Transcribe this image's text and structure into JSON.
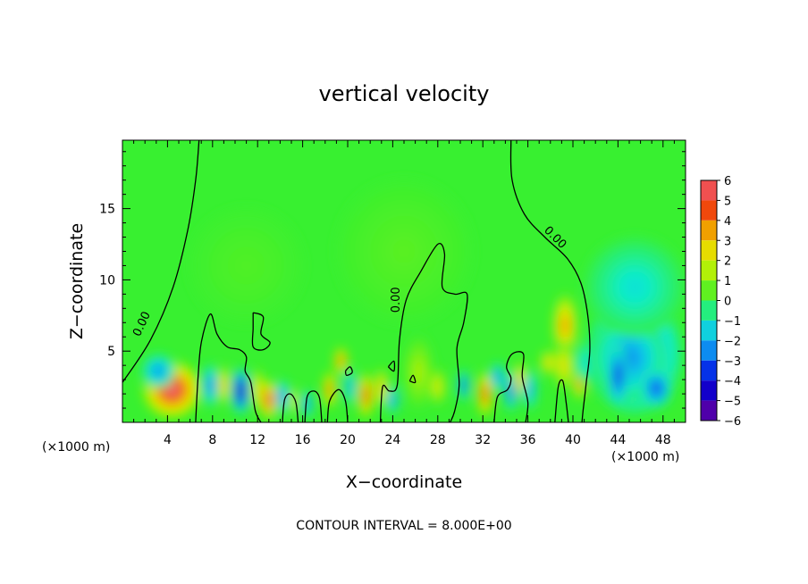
{
  "chart_data": {
    "type": "heatmap",
    "title": "vertical velocity",
    "xlabel": "X−coordinate",
    "ylabel": "Z−coordinate",
    "x_unit_left": "(×1000 m)",
    "x_unit_right": "(×1000 m)",
    "footer": "CONTOUR INTERVAL = 8.000E+00",
    "xlim": [
      0,
      50
    ],
    "ylim": [
      0,
      19.8
    ],
    "x_ticks": [
      4,
      8,
      12,
      16,
      20,
      24,
      28,
      32,
      36,
      40,
      44,
      48
    ],
    "y_ticks": [
      5,
      10,
      15
    ],
    "colorbar": {
      "levels": [
        6,
        5,
        4,
        3,
        2,
        1,
        0,
        -1,
        -2,
        -3,
        -4,
        -5,
        -6
      ],
      "labels": [
        "6",
        "5",
        "4",
        "3",
        "2",
        "1",
        "0",
        "−1",
        "−2",
        "−3",
        "−4",
        "−5",
        "−6"
      ]
    },
    "contour_labels": [
      {
        "text": "0.00",
        "x": 2.0,
        "y": 6.8
      },
      {
        "text": "0.00",
        "x": 24.6,
        "y": 8.6
      },
      {
        "text": "0.00",
        "x": 38.2,
        "y": 12.8
      }
    ],
    "features": [
      {
        "x": 4.4,
        "y": 2.3,
        "w": 2.6,
        "h": 2.0,
        "a": 6
      },
      {
        "x": 3.2,
        "y": 3.6,
        "w": 1.5,
        "h": 1.2,
        "a": -2.5
      },
      {
        "x": 7.8,
        "y": 2.6,
        "w": 0.7,
        "h": 1.5,
        "a": -3
      },
      {
        "x": 9.0,
        "y": 2.6,
        "w": 0.6,
        "h": 1.4,
        "a": 3.5
      },
      {
        "x": 10.5,
        "y": 2.2,
        "w": 0.8,
        "h": 1.6,
        "a": -5.5
      },
      {
        "x": 12.0,
        "y": 2.3,
        "w": 0.6,
        "h": 1.5,
        "a": 3
      },
      {
        "x": 13.0,
        "y": 1.6,
        "w": 0.8,
        "h": 1.4,
        "a": 5.5
      },
      {
        "x": 14.2,
        "y": 1.8,
        "w": 0.6,
        "h": 1.2,
        "a": -3
      },
      {
        "x": 15.2,
        "y": 1.5,
        "w": 0.5,
        "h": 1.0,
        "a": 2.5
      },
      {
        "x": 16.4,
        "y": 1.3,
        "w": 0.5,
        "h": 1.0,
        "a": -3
      },
      {
        "x": 18.4,
        "y": 2.3,
        "w": 0.6,
        "h": 1.3,
        "a": 4.5
      },
      {
        "x": 19.4,
        "y": 4.3,
        "w": 0.6,
        "h": 1.0,
        "a": 4.5
      },
      {
        "x": 20.2,
        "y": 2.5,
        "w": 0.5,
        "h": 1.3,
        "a": -2.5
      },
      {
        "x": 21.6,
        "y": 1.9,
        "w": 0.7,
        "h": 1.6,
        "a": 5
      },
      {
        "x": 23.0,
        "y": 2.4,
        "w": 0.6,
        "h": 1.4,
        "a": 3.5
      },
      {
        "x": 24.0,
        "y": 1.6,
        "w": 0.5,
        "h": 1.0,
        "a": -3
      },
      {
        "x": 26.3,
        "y": 3.5,
        "w": 1.3,
        "h": 2.5,
        "a": 1.5
      },
      {
        "x": 28.0,
        "y": 2.5,
        "w": 0.7,
        "h": 1.3,
        "a": 2.5
      },
      {
        "x": 30.3,
        "y": 2.6,
        "w": 0.5,
        "h": 1.1,
        "a": -3.5
      },
      {
        "x": 32.2,
        "y": 2.0,
        "w": 0.7,
        "h": 1.6,
        "a": 5
      },
      {
        "x": 33.3,
        "y": 3.2,
        "w": 0.6,
        "h": 1.0,
        "a": -3
      },
      {
        "x": 34.5,
        "y": 2.2,
        "w": 0.6,
        "h": 1.4,
        "a": -3.5
      },
      {
        "x": 35.3,
        "y": 3.0,
        "w": 0.6,
        "h": 1.3,
        "a": 3.5
      },
      {
        "x": 36.2,
        "y": 2.3,
        "w": 0.6,
        "h": 1.4,
        "a": -2.5
      },
      {
        "x": 37.8,
        "y": 4.2,
        "w": 0.7,
        "h": 0.9,
        "a": 3
      },
      {
        "x": 39.3,
        "y": 6.8,
        "w": 1.1,
        "h": 2.2,
        "a": 3.8
      },
      {
        "x": 39.2,
        "y": 4.0,
        "w": 0.9,
        "h": 1.7,
        "a": 2.8
      },
      {
        "x": 40.6,
        "y": 2.8,
        "w": 0.6,
        "h": 1.2,
        "a": 4.5
      },
      {
        "x": 41.2,
        "y": 4.2,
        "w": 1.0,
        "h": 1.5,
        "a": -1.5
      },
      {
        "x": 45.5,
        "y": 4.8,
        "w": 4.2,
        "h": 4.2,
        "a": -3
      },
      {
        "x": 45.0,
        "y": 4.5,
        "w": 3.2,
        "h": 3.0,
        "a": -2.5
      },
      {
        "x": 44.0,
        "y": 3.3,
        "w": 0.9,
        "h": 2.2,
        "a": -4
      },
      {
        "x": 47.4,
        "y": 2.4,
        "w": 1.4,
        "h": 1.4,
        "a": -3.5
      },
      {
        "x": 45.5,
        "y": 9.5,
        "w": 4.5,
        "h": 3.5,
        "a": -1.2
      },
      {
        "x": 25.0,
        "y": 12.0,
        "w": 6.0,
        "h": 5.0,
        "a": 0.4
      },
      {
        "x": 11.0,
        "y": 11.0,
        "w": 5.0,
        "h": 4.0,
        "a": 0.3
      }
    ],
    "contours": [
      [
        [
          0,
          2.8
        ],
        [
          2.5,
          5.8
        ],
        [
          4.5,
          9.5
        ],
        [
          5.8,
          13.5
        ],
        [
          6.5,
          17
        ],
        [
          6.8,
          19.8
        ]
      ],
      [
        [
          6.5,
          0
        ],
        [
          6.7,
          3
        ],
        [
          7.0,
          5.6
        ],
        [
          7.8,
          7.6
        ],
        [
          8.4,
          6.2
        ],
        [
          9.3,
          5.3
        ],
        [
          10.4,
          5.1
        ],
        [
          11.0,
          4.6
        ],
        [
          10.9,
          3.6
        ],
        [
          11.4,
          2.8
        ],
        [
          11.8,
          0.8
        ],
        [
          12.3,
          0
        ]
      ],
      [
        [
          11.6,
          7.7
        ],
        [
          12.5,
          7.4
        ],
        [
          12.3,
          6.2
        ],
        [
          13.1,
          5.6
        ],
        [
          12.5,
          5.1
        ],
        [
          11.6,
          5.3
        ],
        [
          11.6,
          6.6
        ],
        [
          11.6,
          7.7
        ]
      ],
      [
        [
          14.2,
          0
        ],
        [
          14.4,
          1.6
        ],
        [
          14.9,
          2.0
        ],
        [
          15.4,
          1.4
        ],
        [
          15.6,
          0
        ]
      ],
      [
        [
          16.2,
          0
        ],
        [
          16.4,
          1.8
        ],
        [
          17.0,
          2.2
        ],
        [
          17.5,
          1.7
        ],
        [
          17.7,
          0
        ]
      ],
      [
        [
          18.2,
          0
        ],
        [
          18.4,
          1.5
        ],
        [
          19.2,
          2.3
        ],
        [
          19.8,
          1.5
        ],
        [
          20.0,
          0
        ]
      ],
      [
        [
          19.8,
          3.6
        ],
        [
          20.2,
          3.9
        ],
        [
          20.4,
          3.5
        ],
        [
          19.9,
          3.3
        ],
        [
          19.8,
          3.6
        ]
      ],
      [
        [
          22.9,
          0
        ],
        [
          23.1,
          2.5
        ],
        [
          23.7,
          2.2
        ],
        [
          24.4,
          2.6
        ],
        [
          24.6,
          5.8
        ],
        [
          25.2,
          8.6
        ],
        [
          26.5,
          10.6
        ],
        [
          28.0,
          12.5
        ],
        [
          28.6,
          11.8
        ],
        [
          28.4,
          9.5
        ],
        [
          29.5,
          9.0
        ],
        [
          30.6,
          9.0
        ],
        [
          30.3,
          7.0
        ],
        [
          29.7,
          5.2
        ],
        [
          29.9,
          2.6
        ],
        [
          29.5,
          0.8
        ],
        [
          29.1,
          0
        ]
      ],
      [
        [
          23.6,
          3.9
        ],
        [
          24.1,
          4.3
        ],
        [
          24.1,
          3.6
        ],
        [
          23.6,
          3.9
        ]
      ],
      [
        [
          25.5,
          2.9
        ],
        [
          25.8,
          3.3
        ],
        [
          26.0,
          2.8
        ],
        [
          25.5,
          2.9
        ]
      ],
      [
        [
          33.0,
          0
        ],
        [
          33.3,
          1.8
        ],
        [
          34.2,
          2.3
        ],
        [
          34.5,
          3.1
        ],
        [
          34.1,
          3.9
        ],
        [
          34.6,
          4.8
        ],
        [
          35.6,
          4.8
        ],
        [
          35.5,
          3.2
        ],
        [
          36.0,
          1.4
        ],
        [
          35.8,
          0
        ]
      ],
      [
        [
          34.5,
          19.8
        ],
        [
          34.6,
          17.0
        ],
        [
          35.7,
          14.6
        ],
        [
          37.5,
          13.0
        ],
        [
          39.5,
          11.5
        ],
        [
          40.7,
          9.8
        ],
        [
          41.3,
          7.6
        ],
        [
          41.5,
          5.1
        ],
        [
          41.2,
          2.9
        ],
        [
          40.9,
          0.8
        ],
        [
          40.8,
          0
        ]
      ],
      [
        [
          38.4,
          0
        ],
        [
          38.7,
          2.5
        ],
        [
          39.1,
          2.9
        ],
        [
          39.4,
          1.4
        ],
        [
          39.6,
          0
        ]
      ]
    ]
  }
}
